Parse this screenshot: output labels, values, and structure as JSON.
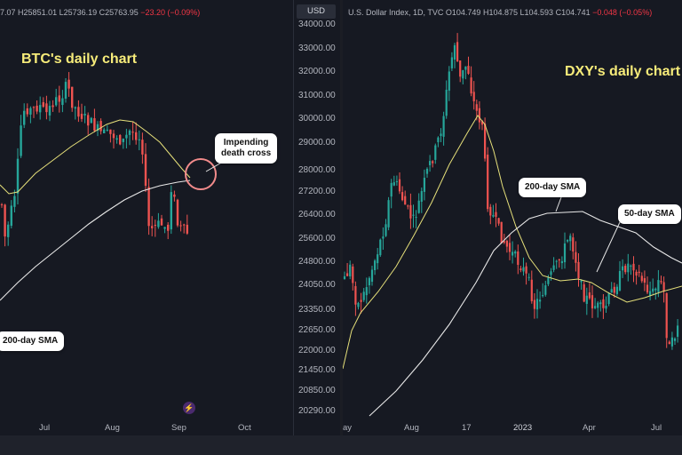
{
  "left": {
    "ohlc_prefix": "7.07",
    "ohlc_h": "H25851.01",
    "ohlc_l": "L25736.19",
    "ohlc_c": "C25763.95",
    "ohlc_chg": "−23.20 (−0.09%)",
    "title": "BTC's daily chart",
    "callout_cross": "Impending\ndeath cross",
    "callout_sma": "200-day SMA",
    "currency_button": "USD",
    "x_ticks": [
      "Jul",
      "Aug",
      "Sep",
      "Oct"
    ],
    "y_ticks": [
      "34000.00",
      "33000.00",
      "32000.00",
      "31000.00",
      "30000.00",
      "29000.00",
      "28000.00",
      "27200.00",
      "26400.00",
      "25600.00",
      "24800.00",
      "24050.00",
      "23350.00",
      "22650.00",
      "22000.00",
      "21450.00",
      "20850.00",
      "20290.00"
    ]
  },
  "right": {
    "ohlc_name": "U.S. Dollar Index, 1D, TVC",
    "ohlc_o": "O104.749",
    "ohlc_h": "H104.875",
    "ohlc_l": "L104.593",
    "ohlc_c": "C104.741",
    "ohlc_chg": "−0.048 (−0.05%)",
    "title": "DXY's daily chart",
    "callout_200": "200-day SMA",
    "callout_50": "50-day SMA",
    "x_ticks": [
      "ay",
      "Aug",
      "17",
      "2023",
      "Apr",
      "Jul"
    ]
  },
  "colors": {
    "up": "#26a69a",
    "down": "#ef5350",
    "sma50": "#e6e07a",
    "sma200": "#e8e8e8",
    "highlight": "#f28b8b"
  },
  "chart_data": [
    {
      "type": "candlestick",
      "title": "BTC's daily chart",
      "x_labels": [
        "Jul",
        "Aug",
        "Sep",
        "Oct"
      ],
      "ylim": [
        20290,
        34000
      ],
      "series": [
        {
          "name": "200-day SMA"
        }
      ],
      "last_close": 25763.95,
      "approx_closes": [
        25000,
        26800,
        30200,
        30500,
        30900,
        30100,
        29700,
        29300,
        29100,
        29400,
        29200,
        29000,
        26100,
        26000,
        26200,
        27600,
        25900,
        25800
      ]
    },
    {
      "type": "candlestick",
      "title": "DXY's daily chart",
      "x_labels": [
        "ay",
        "Aug",
        "17",
        "2023",
        "Apr",
        "Jul"
      ],
      "series": [
        {
          "name": "50-day SMA"
        },
        {
          "name": "200-day SMA"
        }
      ],
      "last_close": 104.741,
      "approx_closes": [
        102.0,
        104.5,
        106.5,
        109.5,
        111.0,
        113.8,
        111.5,
        108.0,
        104.5,
        103.5,
        102.0,
        104.8,
        103.5,
        102.5,
        101.8,
        104.0,
        102.5,
        100.5,
        102.0
      ]
    }
  ]
}
